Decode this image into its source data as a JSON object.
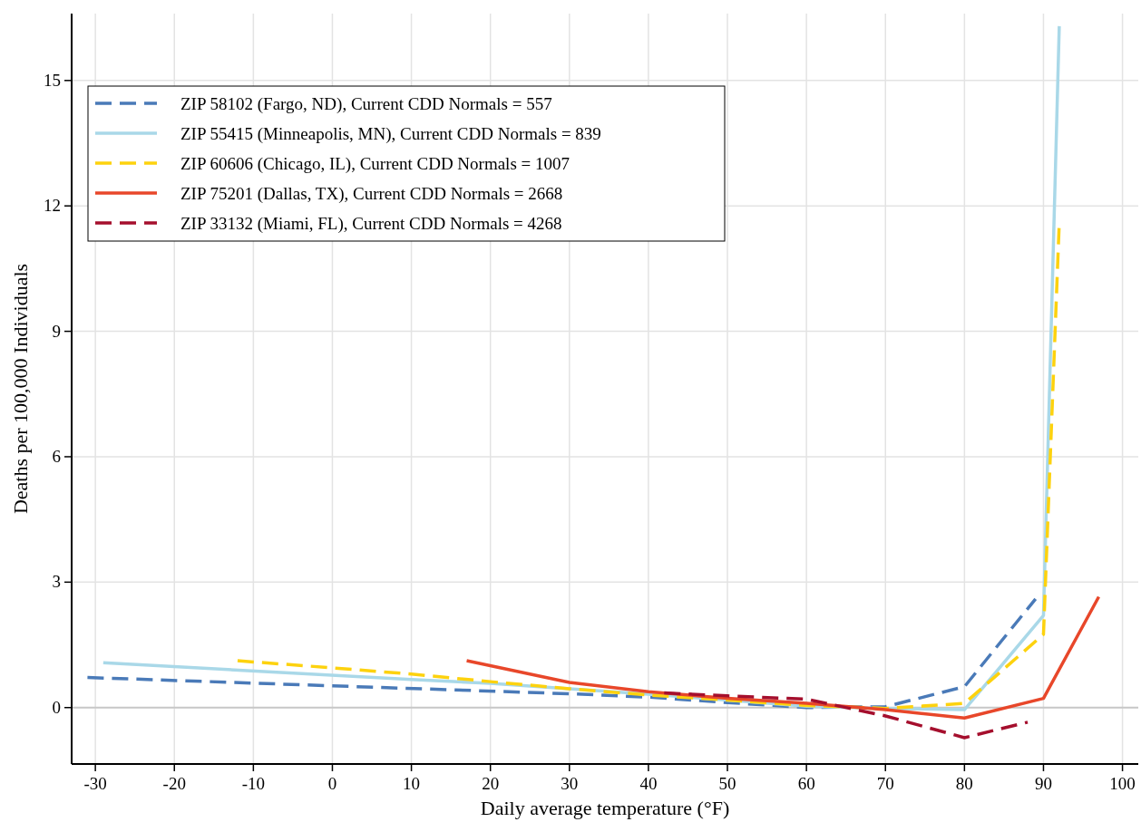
{
  "chart_data": {
    "type": "line",
    "xlabel": "Daily average temperature (°F)",
    "ylabel": "Deaths per 100,000 Individuals",
    "xlim": [
      -33,
      102
    ],
    "xticks": [
      -30,
      -20,
      -10,
      0,
      10,
      20,
      30,
      40,
      50,
      60,
      70,
      80,
      90,
      100
    ],
    "ylim": [
      -1.35,
      16.6
    ],
    "yticks": [
      0,
      3,
      6,
      9,
      12,
      15
    ],
    "grid": true,
    "legend": "top left",
    "ref_lines": [
      {
        "axis": "y",
        "value": 0,
        "color": "#c8c8c8"
      }
    ],
    "series": [
      {
        "name": "ZIP 58102 (Fargo, ND), Current CDD Normals = 557",
        "color": "#4a7ab8",
        "line_style": "dashed",
        "x": [
          -31,
          0,
          30,
          40,
          50,
          60,
          70,
          80,
          89
        ],
        "values": [
          0.72,
          0.52,
          0.33,
          0.25,
          0.12,
          0.0,
          0.02,
          0.5,
          2.6
        ]
      },
      {
        "name": "ZIP 55415 (Minneapolis, MN), Current CDD Normals = 839",
        "color": "#a9d8e8",
        "line_style": "solid",
        "x": [
          -29,
          10,
          20,
          30,
          40,
          50,
          60,
          70,
          80,
          90,
          92
        ],
        "values": [
          1.07,
          0.67,
          0.58,
          0.45,
          0.32,
          0.18,
          0.03,
          -0.02,
          -0.05,
          2.2,
          16.3
        ]
      },
      {
        "name": "ZIP 60606 (Chicago, IL), Current CDD Normals = 1007",
        "color": "#fdd20e",
        "line_style": "dashed",
        "x": [
          -12,
          0,
          10,
          20,
          30,
          40,
          50,
          60,
          70,
          80,
          90,
          92
        ],
        "values": [
          1.12,
          0.95,
          0.8,
          0.62,
          0.45,
          0.3,
          0.18,
          0.05,
          -0.02,
          0.1,
          1.75,
          11.6
        ]
      },
      {
        "name": "ZIP 75201 (Dallas, TX), Current CDD Normals = 2668",
        "color": "#e8472a",
        "line_style": "solid",
        "x": [
          17,
          30,
          40,
          50,
          60,
          70,
          80,
          90,
          97
        ],
        "values": [
          1.12,
          0.6,
          0.38,
          0.22,
          0.1,
          -0.05,
          -0.25,
          0.22,
          2.65
        ]
      },
      {
        "name": "ZIP 33132 (Miami, FL), Current CDD Normals = 4268",
        "color": "#a50f2d",
        "line_style": "dashed",
        "x": [
          42,
          50,
          60,
          70,
          80,
          88
        ],
        "values": [
          0.35,
          0.28,
          0.2,
          -0.2,
          -0.72,
          -0.35
        ]
      }
    ]
  }
}
